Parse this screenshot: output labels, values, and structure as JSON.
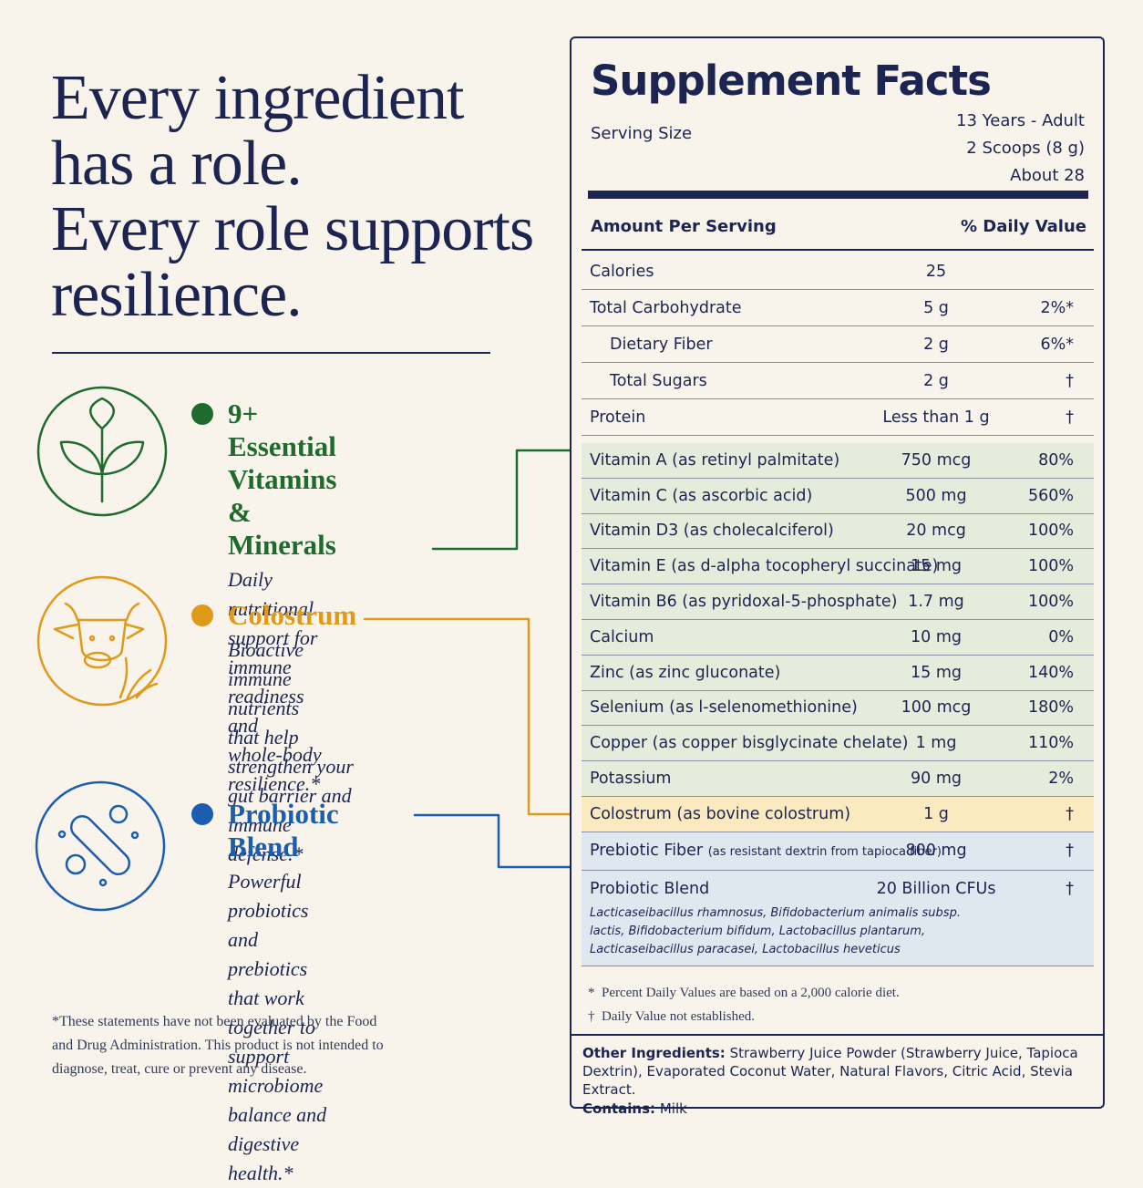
{
  "headline": [
    "Every ingredient",
    "has a role.",
    "Every role supports",
    "resilience."
  ],
  "features": [
    {
      "title": [
        "9+ Essential Vitamins",
        "& Minerals"
      ],
      "text": [
        "Daily nutritional support for",
        "immune readiness and",
        "whole-body resilience.*"
      ]
    },
    {
      "title": [
        "Colostrum"
      ],
      "text": [
        "Bioactive immune nutrients",
        "that help strengthen your",
        "gut barrier and immune",
        "defense.*"
      ]
    },
    {
      "title": [
        "Probiotic Blend"
      ],
      "text": [
        "Powerful probiotics and prebiotics",
        "that work together to support",
        "microbiome balance and",
        "digestive health.*"
      ]
    }
  ],
  "disclaimer": [
    "*These statements have not been evaluated by the Food",
    "and Drug Administration. This product is not intended to",
    "diagnose, treat, cure or prevent any disease."
  ],
  "facts": {
    "title": "Supplement Facts",
    "serving_label": "Serving Size",
    "serving_values": [
      "13 Years - Adult",
      "2 Scoops (8 g)",
      "About 28"
    ],
    "header": [
      "Amount Per Serving",
      "% Daily Value"
    ],
    "sections": [
      {
        "rows": [
          {
            "name": "Calories",
            "amount": "25"
          },
          {
            "name": "Total Carbohydrate",
            "amount": "5 g",
            "dv": "2%*"
          },
          {
            "name": "Dietary Fiber",
            "amount": "2 g",
            "dv": "6%*",
            "indent": true
          },
          {
            "name": "Total Sugars",
            "amount": "2 g",
            "dv": "†",
            "indent": true
          },
          {
            "name": "Protein",
            "amount": "Less than 1 g",
            "dv": "†"
          }
        ]
      },
      {
        "rows": [
          {
            "name": "Vitamin A (as retinyl palmitate)",
            "amount": "750 mcg",
            "dv": "80%"
          },
          {
            "name": "Vitamin C (as ascorbic acid)",
            "amount": "500 mg",
            "dv": "560%"
          },
          {
            "name": "Vitamin D3 (as cholecalciferol)",
            "amount": "20 mcg",
            "dv": "100%"
          },
          {
            "name": "Vitamin E (as d-alpha tocopheryl succinate)",
            "amount": "15 mg",
            "dv": "100%"
          },
          {
            "name": "Vitamin B6 (as pyridoxal-5-phosphate)",
            "amount": "1.7 mg",
            "dv": "100%"
          },
          {
            "name": "Calcium",
            "amount": "10 mg",
            "dv": "0%"
          },
          {
            "name": "Zinc (as zinc gluconate)",
            "amount": "15 mg",
            "dv": "140%"
          },
          {
            "name": "Selenium (as l-selenomethionine)",
            "amount": "100 mcg",
            "dv": "180%"
          },
          {
            "name": "Copper (as copper bisglycinate chelate)",
            "amount": "1 mg",
            "dv": "110%"
          },
          {
            "name": "Potassium",
            "amount": "90 mg",
            "dv": "2%"
          }
        ]
      },
      {
        "rows": [
          {
            "name": "Colostrum (as bovine colostrum)",
            "amount": "1 g",
            "dv": "†"
          }
        ]
      },
      {
        "rows": [
          {
            "name": "Prebiotic Fiber",
            "note": "(as resistant dextrin from tapioca fiber)",
            "amount": "800 mg",
            "dv": "†"
          },
          {
            "name": "Probiotic Blend",
            "amount": "20 Billion CFUs",
            "dv": "†",
            "strains": [
              "Lacticaseibacillus rhamnosus, Bifidobacterium animalis subsp.",
              "lactis, Bifidobacterium bifidum, Lactobacillus plantarum,",
              "Lacticaseibacillus paracasei, Lactobacillus heveticus"
            ]
          }
        ]
      }
    ],
    "footnotes": [
      {
        "mark": "*",
        "text": "Percent Daily Values are based on a 2,000 calorie diet."
      },
      {
        "mark": "†",
        "text": "Daily Value not established."
      }
    ],
    "other_label": "Other Ingredients:",
    "other": "Strawberry Juice Powder (Strawberry Juice, Tapioca Dextrin), Evaporated Coconut Water, Natural Flavors, Citric Acid, Stevia Extract.",
    "contains_label": "Contains:",
    "contains": "Milk"
  }
}
